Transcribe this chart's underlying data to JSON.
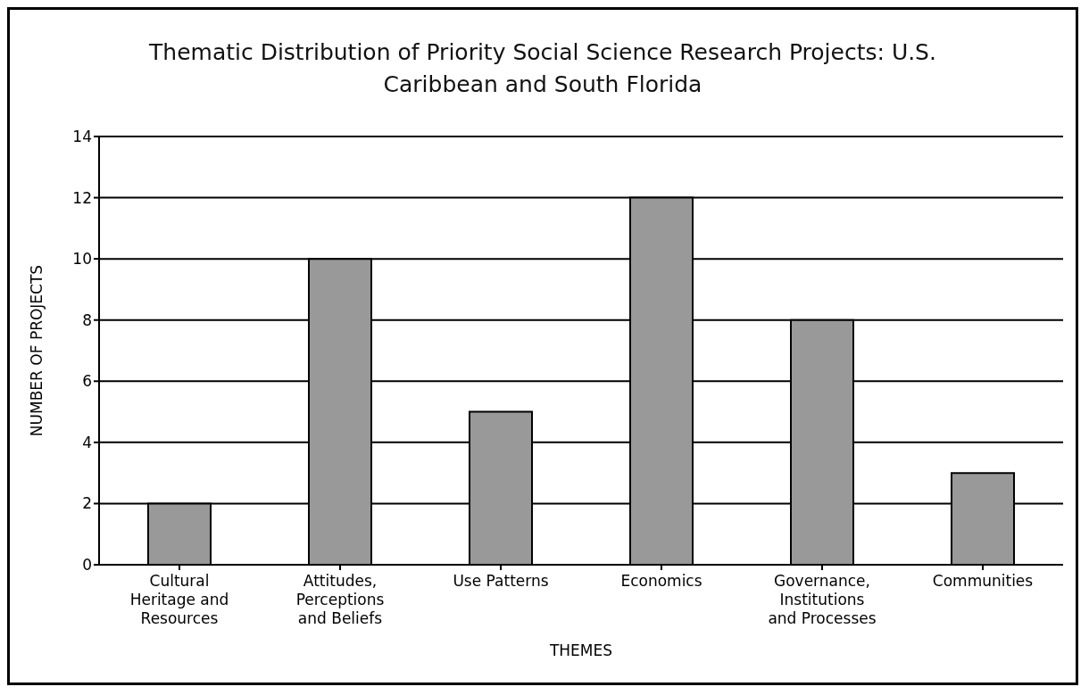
{
  "chart_data": {
    "type": "bar",
    "title": "Thematic Distribution of Priority Social Science Research Projects: U.S. Caribbean and South Florida",
    "xlabel": "THEMES",
    "ylabel": "NUMBER OF PROJECTS",
    "categories": [
      "Cultural Heritage and Resources",
      "Attitudes, Perceptions and Beliefs",
      "Use Patterns",
      "Economics",
      "Governance, Institutions and Processes",
      "Communities"
    ],
    "values": [
      2,
      10,
      5,
      12,
      8,
      3
    ],
    "color": "#999999",
    "ylim": [
      0,
      14
    ],
    "yticks": [
      0,
      2,
      4,
      6,
      8,
      10,
      12,
      14
    ],
    "grid": "y"
  }
}
